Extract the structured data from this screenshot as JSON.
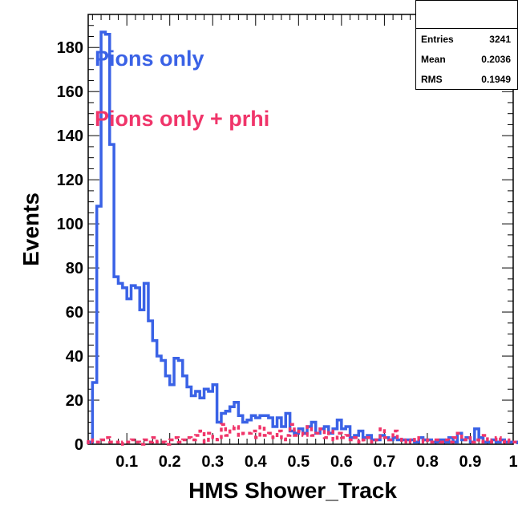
{
  "chart_data": {
    "type": "histogram",
    "xlabel": "HMS Shower_Track",
    "ylabel": "Events",
    "xlim": [
      0.01,
      1.0
    ],
    "ylim": [
      0,
      195
    ],
    "x_ticks": [
      "0.1",
      "0.2",
      "0.3",
      "0.4",
      "0.5",
      "0.6",
      "0.7",
      "0.8",
      "0.9",
      "1"
    ],
    "y_ticks": [
      "0",
      "20",
      "40",
      "60",
      "80",
      "100",
      "120",
      "140",
      "160",
      "180"
    ],
    "bin_width": 0.01,
    "series": [
      {
        "name": "Pions only",
        "color": "#3a62e6",
        "style": "solid",
        "bins_x0": 0.01,
        "values": [
          1,
          28,
          108,
          187,
          186,
          136,
          76,
          73,
          71,
          66,
          72,
          71,
          61,
          73,
          56,
          47,
          40,
          38,
          31,
          27,
          39,
          38,
          31,
          26,
          22,
          24,
          21,
          25,
          24,
          27,
          10,
          14,
          15,
          17,
          19,
          13,
          10,
          11,
          13,
          12,
          13,
          13,
          12,
          8,
          12,
          8,
          14,
          6,
          5,
          7,
          5,
          8,
          10,
          5,
          7,
          8,
          5,
          7,
          11,
          7,
          8,
          3,
          4,
          6,
          3,
          4,
          2,
          2,
          4,
          3,
          2,
          3,
          2,
          2,
          2,
          2,
          1,
          3,
          2,
          2,
          1,
          1,
          2,
          1,
          3,
          1,
          5,
          2,
          3,
          1,
          7,
          3,
          1,
          1,
          2,
          1,
          2,
          1,
          1,
          1
        ]
      },
      {
        "name": "Pions only + prhi",
        "color": "#f0356a",
        "style": "dashed",
        "bins_x0": 0.01,
        "values": [
          2,
          1,
          1,
          2,
          3,
          1,
          1,
          0,
          1,
          1,
          2,
          1,
          0,
          2,
          1,
          3,
          1,
          1,
          0,
          2,
          3,
          1,
          2,
          3,
          2,
          4,
          6,
          1,
          5,
          3,
          2,
          9,
          4,
          7,
          8,
          4,
          5,
          5,
          6,
          3,
          8,
          4,
          5,
          3,
          6,
          2,
          4,
          9,
          4,
          6,
          4,
          8,
          4,
          5,
          7,
          3,
          6,
          2,
          5,
          3,
          4,
          2,
          3,
          1,
          2,
          3,
          1,
          2,
          7,
          3,
          2,
          6,
          3,
          1,
          2,
          1,
          3,
          2,
          1,
          2,
          1,
          2,
          1,
          2,
          1,
          3,
          5,
          2,
          3,
          1,
          2,
          1,
          4,
          1,
          2,
          3,
          1,
          2,
          1,
          1
        ]
      }
    ],
    "legend_placement": "top-left",
    "stats": {
      "rows": [
        {
          "label": "Entries",
          "value": "3241"
        },
        {
          "label": "Mean",
          "value": "0.2036"
        },
        {
          "label": "RMS",
          "value": "0.1949"
        }
      ]
    }
  }
}
